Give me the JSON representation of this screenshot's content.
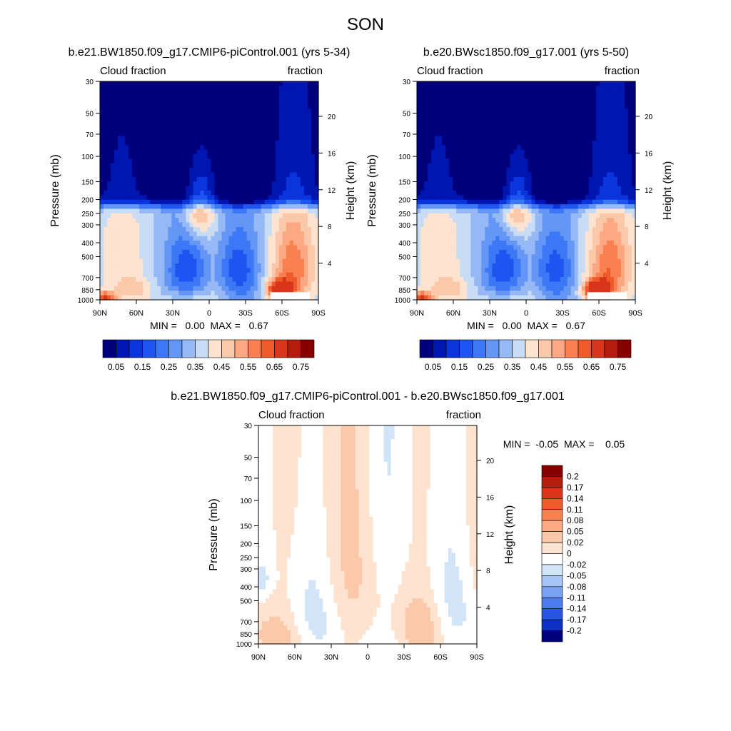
{
  "figure": {
    "title": "SON"
  },
  "chart_data": [
    {
      "type": "heatmap",
      "title": "b.e21.BW1850.f09_g17.CMIP6-piControl.001 (yrs 5-34)",
      "subtitle_left": "Cloud fraction",
      "subtitle_right": "fraction",
      "ylabel": "Pressure (mb)",
      "y2label": "Height (km)",
      "x_ticks": [
        "90N",
        "60N",
        "30N",
        "0",
        "30S",
        "60S",
        "90S"
      ],
      "xlim": [
        90,
        -90
      ],
      "y_ticks": [
        "30",
        "50",
        "70",
        "100",
        "150",
        "200",
        "250",
        "300",
        "400",
        "500",
        "700",
        "850",
        "1000"
      ],
      "y_tick_values": [
        30,
        50,
        70,
        100,
        150,
        200,
        250,
        300,
        400,
        500,
        700,
        850,
        1000
      ],
      "ylim": [
        30,
        1000
      ],
      "y2_ticks": [
        "20",
        "16",
        "12",
        "8",
        "4"
      ],
      "y2_tick_values": [
        20,
        16,
        12,
        8,
        4
      ],
      "stats": "MIN =   0.00  MAX =   0.67",
      "min": 0.0,
      "max": 0.67,
      "legend": {
        "placement": "bottom",
        "labels": [
          "0.05",
          "0.15",
          "0.25",
          "0.35",
          "0.45",
          "0.55",
          "0.65",
          "0.75"
        ]
      }
    },
    {
      "type": "heatmap",
      "title": "b.e20.BWsc1850.f09_g17.001 (yrs 5-50)",
      "subtitle_left": "Cloud fraction",
      "subtitle_right": "fraction",
      "ylabel": "Pressure (mb)",
      "y2label": "Height (km)",
      "x_ticks": [
        "90N",
        "60N",
        "30N",
        "0",
        "30S",
        "60S",
        "90S"
      ],
      "xlim": [
        90,
        -90
      ],
      "y_ticks": [
        "30",
        "50",
        "70",
        "100",
        "150",
        "200",
        "250",
        "300",
        "400",
        "500",
        "700",
        "850",
        "1000"
      ],
      "y_tick_values": [
        30,
        50,
        70,
        100,
        150,
        200,
        250,
        300,
        400,
        500,
        700,
        850,
        1000
      ],
      "ylim": [
        30,
        1000
      ],
      "y2_ticks": [
        "20",
        "16",
        "12",
        "8",
        "4"
      ],
      "y2_tick_values": [
        20,
        16,
        12,
        8,
        4
      ],
      "stats": "MIN =   0.00  MAX =   0.67",
      "min": 0.0,
      "max": 0.67,
      "legend": {
        "placement": "bottom",
        "labels": [
          "0.05",
          "0.15",
          "0.25",
          "0.35",
          "0.45",
          "0.55",
          "0.65",
          "0.75"
        ]
      }
    },
    {
      "type": "heatmap",
      "title": "b.e21.BW1850.f09_g17.CMIP6-piControl.001 - b.e20.BWsc1850.f09_g17.001",
      "subtitle_left": "Cloud fraction",
      "subtitle_right": "fraction",
      "ylabel": "Pressure (mb)",
      "y2label": "Height (km)",
      "x_ticks": [
        "90N",
        "60N",
        "30N",
        "0",
        "30S",
        "60S",
        "90S"
      ],
      "xlim": [
        90,
        -90
      ],
      "y_ticks": [
        "30",
        "50",
        "70",
        "100",
        "150",
        "200",
        "250",
        "300",
        "400",
        "500",
        "700",
        "850",
        "1000"
      ],
      "y_tick_values": [
        30,
        50,
        70,
        100,
        150,
        200,
        250,
        300,
        400,
        500,
        700,
        850,
        1000
      ],
      "ylim": [
        30,
        1000
      ],
      "y2_ticks": [
        "20",
        "16",
        "12",
        "8",
        "4"
      ],
      "y2_tick_values": [
        20,
        16,
        12,
        8,
        4
      ],
      "stats": "MIN =  -0.05  MAX =    0.05",
      "min": -0.05,
      "max": 0.05,
      "legend": {
        "placement": "right",
        "labels": [
          "0.2",
          "0.17",
          "0.14",
          "0.11",
          "0.08",
          "0.05",
          "0.02",
          "0",
          "-0.02",
          "-0.05",
          "-0.08",
          "-0.11",
          "-0.14",
          "-0.17",
          "-0.2"
        ]
      }
    }
  ],
  "colors": {
    "seq": [
      "#00007d",
      "#0016b0",
      "#0a34dc",
      "#1e55f0",
      "#3c78f5",
      "#6496f5",
      "#96b9f5",
      "#c8dcf5",
      "#fde3d0",
      "#fcc8aa",
      "#fca882",
      "#f98050",
      "#ef5a2a",
      "#d8351a",
      "#b41c0e",
      "#870000"
    ],
    "div": [
      "#870000",
      "#b41c0e",
      "#d8351a",
      "#ef5a2a",
      "#f98050",
      "#fca882",
      "#fcc8aa",
      "#fde3d0",
      "#ffffff",
      "#d2e4f8",
      "#a6c4f4",
      "#7aa2f2",
      "#4d7cf0",
      "#2855e2",
      "#0d31c6",
      "#00007d"
    ]
  }
}
